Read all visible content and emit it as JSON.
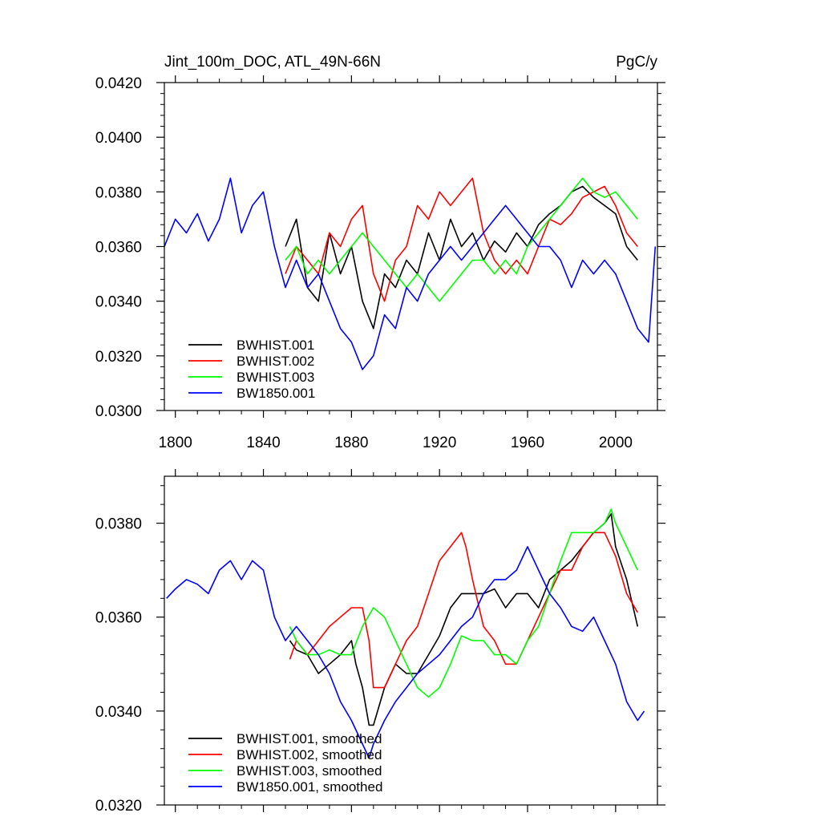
{
  "chart_data": [
    {
      "type": "line",
      "title_left": "Jint_100m_DOC, ATL_49N-66N",
      "title_right": "PgC/y",
      "xlim": [
        1795,
        2019
      ],
      "ylim": [
        0.03,
        0.042
      ],
      "xticks": [
        1800,
        1840,
        1880,
        1920,
        1960,
        2000
      ],
      "xtick_labels": [
        "1800",
        "1840",
        "1880",
        "1920",
        "1960",
        "2000"
      ],
      "yticks": [
        0.03,
        0.032,
        0.034,
        0.036,
        0.038,
        0.04,
        0.042
      ],
      "ytick_labels": [
        "0.0300",
        "0.0320",
        "0.0340",
        "0.0360",
        "0.0380",
        "0.0400",
        "0.0420"
      ],
      "legend": "bottom-left",
      "series": [
        {
          "name": "BWHIST.001",
          "color": "#000000",
          "x": [
            1850,
            1855,
            1860,
            1865,
            1870,
            1875,
            1880,
            1885,
            1890,
            1895,
            1900,
            1905,
            1910,
            1915,
            1920,
            1925,
            1930,
            1935,
            1940,
            1945,
            1950,
            1955,
            1960,
            1965,
            1970,
            1975,
            1980,
            1985,
            1990,
            1995,
            2000,
            2005,
            2010
          ],
          "y": [
            0.036,
            0.037,
            0.0345,
            0.034,
            0.0365,
            0.035,
            0.036,
            0.034,
            0.033,
            0.035,
            0.0345,
            0.0355,
            0.035,
            0.0365,
            0.0355,
            0.037,
            0.036,
            0.0365,
            0.0355,
            0.0362,
            0.0358,
            0.0365,
            0.036,
            0.0368,
            0.0372,
            0.0375,
            0.038,
            0.0382,
            0.0378,
            0.0375,
            0.0372,
            0.036,
            0.0355
          ]
        },
        {
          "name": "BWHIST.002",
          "color": "#ff0000",
          "x": [
            1850,
            1855,
            1860,
            1865,
            1870,
            1875,
            1880,
            1885,
            1890,
            1895,
            1900,
            1905,
            1910,
            1915,
            1920,
            1925,
            1930,
            1935,
            1940,
            1945,
            1950,
            1955,
            1960,
            1965,
            1970,
            1975,
            1980,
            1985,
            1990,
            1995,
            2000,
            2005,
            2010
          ],
          "y": [
            0.035,
            0.036,
            0.0355,
            0.035,
            0.0365,
            0.036,
            0.037,
            0.0375,
            0.035,
            0.034,
            0.0355,
            0.036,
            0.0375,
            0.037,
            0.038,
            0.0375,
            0.038,
            0.0385,
            0.0365,
            0.0355,
            0.035,
            0.0355,
            0.035,
            0.036,
            0.037,
            0.0368,
            0.0372,
            0.0378,
            0.038,
            0.0382,
            0.0375,
            0.0365,
            0.036
          ]
        },
        {
          "name": "BWHIST.003",
          "color": "#00ff00",
          "x": [
            1850,
            1855,
            1860,
            1865,
            1870,
            1875,
            1880,
            1885,
            1890,
            1895,
            1900,
            1905,
            1910,
            1915,
            1920,
            1925,
            1930,
            1935,
            1940,
            1945,
            1950,
            1955,
            1960,
            1965,
            1970,
            1975,
            1980,
            1985,
            1990,
            1995,
            2000,
            2005,
            2010
          ],
          "y": [
            0.0355,
            0.036,
            0.035,
            0.0355,
            0.035,
            0.0355,
            0.036,
            0.0365,
            0.036,
            0.0355,
            0.035,
            0.0345,
            0.035,
            0.0345,
            0.034,
            0.0345,
            0.035,
            0.0355,
            0.0355,
            0.035,
            0.0355,
            0.035,
            0.036,
            0.0365,
            0.037,
            0.0375,
            0.038,
            0.0385,
            0.038,
            0.0378,
            0.038,
            0.0375,
            0.037
          ]
        },
        {
          "name": "BW1850.001",
          "color": "#0000ff",
          "x": [
            1795,
            1800,
            1805,
            1810,
            1815,
            1820,
            1825,
            1830,
            1835,
            1840,
            1845,
            1850,
            1855,
            1860,
            1865,
            1870,
            1875,
            1880,
            1885,
            1890,
            1895,
            1900,
            1905,
            1910,
            1915,
            1920,
            1925,
            1930,
            1935,
            1940,
            1945,
            1950,
            1955,
            1960,
            1965,
            1970,
            1975,
            1980,
            1985,
            1990,
            1995,
            2000,
            2005,
            2010,
            2015,
            2018
          ],
          "y": [
            0.036,
            0.037,
            0.0365,
            0.0372,
            0.0362,
            0.037,
            0.0385,
            0.0365,
            0.0375,
            0.038,
            0.036,
            0.0345,
            0.0355,
            0.0345,
            0.035,
            0.034,
            0.033,
            0.0325,
            0.0315,
            0.032,
            0.0335,
            0.033,
            0.0345,
            0.034,
            0.035,
            0.0355,
            0.036,
            0.0355,
            0.036,
            0.0365,
            0.037,
            0.0375,
            0.037,
            0.0365,
            0.036,
            0.036,
            0.0355,
            0.0345,
            0.0355,
            0.035,
            0.0355,
            0.035,
            0.034,
            0.033,
            0.0325,
            0.036
          ]
        }
      ]
    },
    {
      "type": "line",
      "xlim": [
        1795,
        2019
      ],
      "ylim": [
        0.032,
        0.039
      ],
      "xticks": [
        1800,
        1840,
        1880,
        1920,
        1960,
        2000
      ],
      "yticks": [
        0.032,
        0.034,
        0.036,
        0.038
      ],
      "ytick_labels": [
        "0.0320",
        "0.0340",
        "0.0360",
        "0.0380"
      ],
      "legend": "bottom-left",
      "series": [
        {
          "name": "BWHIST.001, smoothed",
          "color": "#000000",
          "x": [
            1852,
            1855,
            1860,
            1865,
            1870,
            1875,
            1880,
            1882,
            1885,
            1888,
            1890,
            1895,
            1900,
            1905,
            1910,
            1915,
            1920,
            1925,
            1930,
            1935,
            1940,
            1945,
            1950,
            1955,
            1960,
            1965,
            1970,
            1975,
            1980,
            1985,
            1990,
            1995,
            1998,
            2000,
            2005,
            2010
          ],
          "y": [
            0.0355,
            0.0353,
            0.0352,
            0.0348,
            0.035,
            0.0352,
            0.0355,
            0.035,
            0.0345,
            0.0337,
            0.0337,
            0.0345,
            0.035,
            0.0348,
            0.0348,
            0.0352,
            0.0356,
            0.0362,
            0.0365,
            0.0365,
            0.0365,
            0.0366,
            0.0362,
            0.0365,
            0.0365,
            0.0362,
            0.0368,
            0.037,
            0.0372,
            0.0375,
            0.0378,
            0.038,
            0.0382,
            0.0375,
            0.0368,
            0.0358
          ]
        },
        {
          "name": "BWHIST.002, smoothed",
          "color": "#ff0000",
          "x": [
            1852,
            1855,
            1860,
            1865,
            1870,
            1875,
            1880,
            1885,
            1888,
            1890,
            1895,
            1900,
            1905,
            1910,
            1915,
            1920,
            1925,
            1930,
            1932,
            1935,
            1940,
            1945,
            1950,
            1955,
            1960,
            1965,
            1970,
            1975,
            1980,
            1985,
            1990,
            1995,
            2000,
            2005,
            2010
          ],
          "y": [
            0.0351,
            0.0355,
            0.0352,
            0.0355,
            0.0358,
            0.036,
            0.0362,
            0.0362,
            0.0355,
            0.0345,
            0.0345,
            0.035,
            0.0355,
            0.0358,
            0.0365,
            0.0372,
            0.0375,
            0.0378,
            0.0375,
            0.0368,
            0.0358,
            0.0355,
            0.035,
            0.035,
            0.0355,
            0.036,
            0.0365,
            0.037,
            0.037,
            0.0375,
            0.0378,
            0.0378,
            0.0373,
            0.0365,
            0.0361
          ]
        },
        {
          "name": "BWHIST.003, smoothed",
          "color": "#00ff00",
          "x": [
            1852,
            1855,
            1860,
            1865,
            1870,
            1875,
            1880,
            1885,
            1890,
            1895,
            1900,
            1905,
            1910,
            1915,
            1920,
            1925,
            1930,
            1935,
            1940,
            1945,
            1950,
            1955,
            1960,
            1965,
            1970,
            1975,
            1980,
            1985,
            1990,
            1995,
            1998,
            2000,
            2005,
            2010
          ],
          "y": [
            0.0358,
            0.0355,
            0.0352,
            0.0352,
            0.0353,
            0.0352,
            0.0352,
            0.0358,
            0.0362,
            0.036,
            0.0355,
            0.035,
            0.0345,
            0.0343,
            0.0345,
            0.035,
            0.0356,
            0.0355,
            0.0355,
            0.0352,
            0.0352,
            0.035,
            0.0355,
            0.0358,
            0.0365,
            0.0372,
            0.0378,
            0.0378,
            0.0378,
            0.038,
            0.0383,
            0.038,
            0.0375,
            0.037
          ]
        },
        {
          "name": "BW1850.001, smoothed",
          "color": "#0000ff",
          "x": [
            1796,
            1800,
            1805,
            1810,
            1815,
            1820,
            1825,
            1830,
            1835,
            1840,
            1845,
            1850,
            1855,
            1860,
            1865,
            1870,
            1875,
            1880,
            1885,
            1888,
            1890,
            1895,
            1900,
            1905,
            1910,
            1915,
            1920,
            1925,
            1930,
            1935,
            1940,
            1945,
            1950,
            1955,
            1960,
            1965,
            1970,
            1975,
            1980,
            1985,
            1990,
            1995,
            2000,
            2005,
            2010,
            2013
          ],
          "y": [
            0.0364,
            0.0366,
            0.0368,
            0.0367,
            0.0365,
            0.037,
            0.0372,
            0.0368,
            0.0372,
            0.037,
            0.036,
            0.0355,
            0.0358,
            0.0355,
            0.0352,
            0.0348,
            0.0342,
            0.0338,
            0.0333,
            0.033,
            0.0333,
            0.0338,
            0.0342,
            0.0345,
            0.0348,
            0.035,
            0.0352,
            0.0355,
            0.0358,
            0.036,
            0.0365,
            0.0368,
            0.0368,
            0.037,
            0.0375,
            0.037,
            0.0365,
            0.0362,
            0.0358,
            0.0357,
            0.036,
            0.0355,
            0.035,
            0.0342,
            0.0338,
            0.034
          ]
        }
      ]
    }
  ]
}
